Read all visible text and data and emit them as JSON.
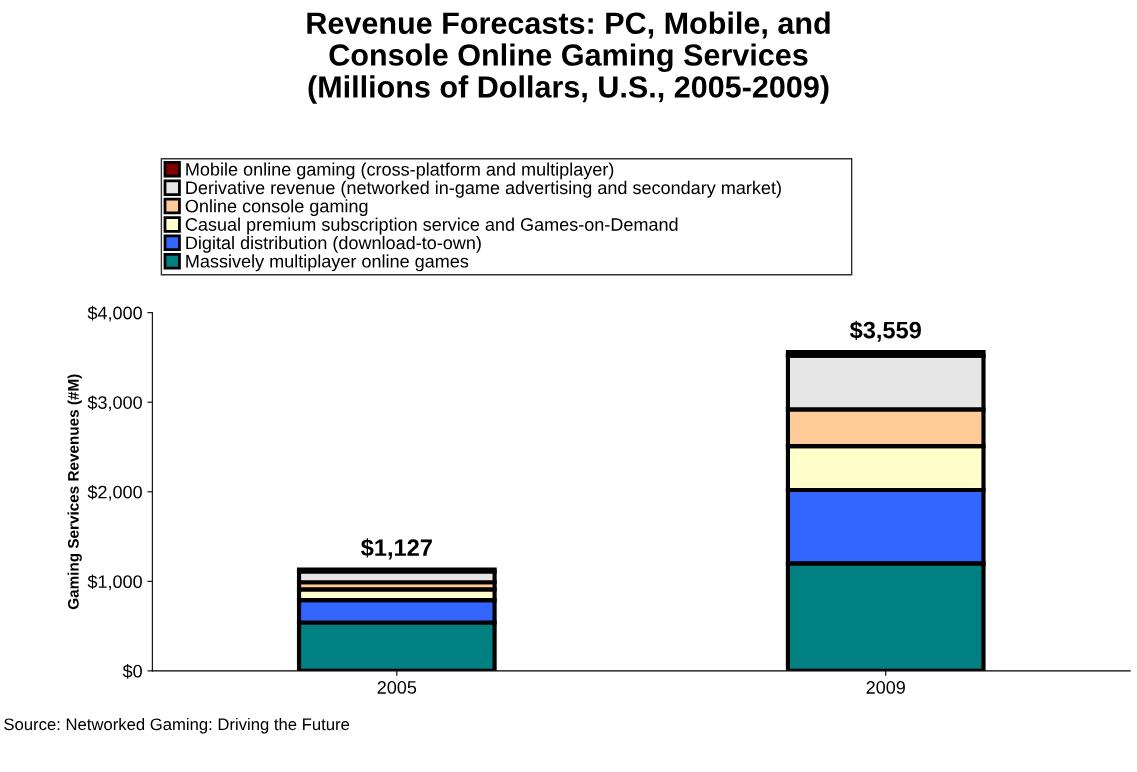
{
  "chart_data": {
    "type": "bar",
    "stacked": true,
    "title": "Revenue Forecasts: PC, Mobile, and\nConsole Online Gaming Services\n(Millions of Dollars, U.S., 2005-2009)",
    "ylabel": "Gaming Services Revenues (#M)",
    "categories": [
      "2005",
      "2009"
    ],
    "series": [
      {
        "name": "Massively multiplayer online games",
        "color": "#008080",
        "values": [
          540,
          1200
        ]
      },
      {
        "name": "Digital distribution (download-to-own)",
        "color": "#3366ff",
        "values": [
          250,
          820
        ]
      },
      {
        "name": "Casual premium subscription service and Games-on-Demand",
        "color": "#ffffcc",
        "values": [
          120,
          490
        ]
      },
      {
        "name": "Online console gaming",
        "color": "#ffcc99",
        "values": [
          80,
          410
        ]
      },
      {
        "name": "Derivative revenue (networked in-game advertising and secondary market)",
        "color": "#e6e6e6",
        "values": [
          120,
          600
        ]
      },
      {
        "name": "Mobile online gaming (cross-platform and multiplayer)",
        "color": "#800000",
        "values": [
          20,
          40
        ]
      }
    ],
    "totals": [
      "$1,127",
      "$3,559"
    ],
    "ylim": [
      0,
      4000
    ],
    "yticks": [
      {
        "value": 0,
        "label": "$0"
      },
      {
        "value": 1000,
        "label": "$1,000"
      },
      {
        "value": 2000,
        "label": "$2,000"
      },
      {
        "value": 3000,
        "label": "$3,000"
      },
      {
        "value": 4000,
        "label": "$4,000"
      }
    ],
    "legend": "top",
    "grid": false,
    "annotations": [
      "Source: Networked Gaming: Driving the Future"
    ]
  }
}
